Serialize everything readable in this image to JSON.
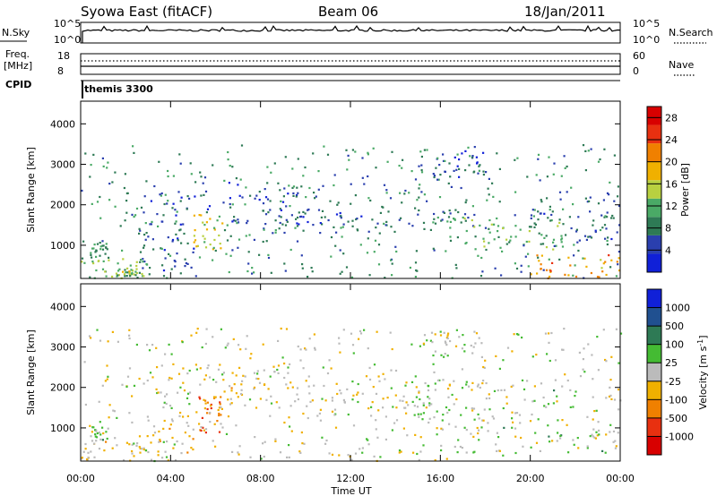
{
  "header": {
    "station": "Syowa East (fitACF)",
    "beam": "Beam 06",
    "date": "18/Jan/2011"
  },
  "noise_panel": {
    "left_label": "N.Sky",
    "left_ticks": [
      "10^5",
      "10^0"
    ],
    "right_ticks": [
      "10^5",
      "10^0"
    ],
    "right_label": "N.Search"
  },
  "freq_panel": {
    "left_label_1": "Freq.",
    "left_label_2": "[MHz]",
    "left_ticks": [
      "18",
      "8"
    ],
    "right_ticks": [
      "60",
      "0"
    ],
    "right_label": "Nave"
  },
  "cpid": {
    "label": "CPID",
    "value": "themis 3300"
  },
  "time_axis": {
    "label": "Time UT",
    "ticks": [
      "00:00",
      "04:00",
      "08:00",
      "12:00",
      "16:00",
      "20:00",
      "00:00"
    ]
  },
  "colors": {
    "power": [
      "#1020d8",
      "#2a3fae",
      "#2e7a55",
      "#4aaa66",
      "#b8d040",
      "#f0b000",
      "#f08000",
      "#e83010",
      "#d80000"
    ],
    "velocity": [
      "#1020d8",
      "#205090",
      "#2e7a55",
      "#44bb33",
      "#bbbbbb",
      "#f0b000",
      "#f08000",
      "#e83010",
      "#d80000"
    ]
  },
  "chart_data": [
    {
      "type": "heatmap",
      "panel": "power",
      "ylabel": "Slant Range [km]",
      "xlabel": "",
      "ylim": [
        180,
        4560
      ],
      "y_ticks": [
        1000,
        2000,
        3000,
        4000
      ],
      "x_ticks": [
        "00:00",
        "04:00",
        "08:00",
        "12:00",
        "16:00",
        "20:00",
        "00:00"
      ],
      "colorbar_label": "Power [dB]",
      "colorbar_ticks": [
        "4",
        "8",
        "12",
        "16",
        "20",
        "24",
        "28"
      ],
      "colorbar_range": [
        0,
        30
      ],
      "scatter_regions": [
        {
          "x": [
            0.0,
            3.0
          ],
          "y": [
            200,
            700
          ],
          "value": 12
        },
        {
          "x": [
            0.3,
            1.2
          ],
          "y": [
            700,
            1100
          ],
          "value": 10
        },
        {
          "x": [
            1.0,
            2.8
          ],
          "y": [
            200,
            400
          ],
          "value": 14
        },
        {
          "x": [
            2.5,
            5.0
          ],
          "y": [
            400,
            1400
          ],
          "value": 6
        },
        {
          "x": [
            5.0,
            6.3
          ],
          "y": [
            900,
            1800
          ],
          "value": 16
        },
        {
          "x": [
            3.0,
            10.0
          ],
          "y": [
            1500,
            2600
          ],
          "value": 5
        },
        {
          "x": [
            8.0,
            13.0
          ],
          "y": [
            1300,
            1900
          ],
          "value": 6
        },
        {
          "x": [
            13.0,
            17.5
          ],
          "y": [
            1400,
            1900
          ],
          "value": 8
        },
        {
          "x": [
            15.0,
            18.0
          ],
          "y": [
            2700,
            3400
          ],
          "value": 5
        },
        {
          "x": [
            17.0,
            21.5
          ],
          "y": [
            900,
            1700
          ],
          "value": 12
        },
        {
          "x": [
            19.5,
            24.0
          ],
          "y": [
            200,
            800
          ],
          "value": 20
        },
        {
          "x": [
            20.0,
            24.0
          ],
          "y": [
            1000,
            2400
          ],
          "value": 6
        },
        {
          "x": [
            0.0,
            24.0
          ],
          "y": [
            200,
            3500
          ],
          "value": 9
        }
      ]
    },
    {
      "type": "heatmap",
      "panel": "velocity",
      "ylabel": "Slant Range [km]",
      "xlabel": "Time UT",
      "ylim": [
        180,
        4560
      ],
      "y_ticks": [
        1000,
        2000,
        3000,
        4000
      ],
      "x_ticks": [
        "00:00",
        "04:00",
        "08:00",
        "12:00",
        "16:00",
        "20:00",
        "00:00"
      ],
      "colorbar_label": "Velocity [m s^-1]",
      "colorbar_ticks": [
        "1000",
        "500",
        "100",
        "25",
        "-25",
        "-100",
        "-500",
        "-1000"
      ],
      "colorbar_range": [
        -1000,
        1000
      ],
      "scatter_regions": [
        {
          "x": [
            0.0,
            4.0
          ],
          "y": [
            200,
            700
          ],
          "value": -100
        },
        {
          "x": [
            0.3,
            1.2
          ],
          "y": [
            700,
            1100
          ],
          "value": 100
        },
        {
          "x": [
            2.5,
            5.0
          ],
          "y": [
            400,
            1400
          ],
          "value": -150
        },
        {
          "x": [
            5.0,
            6.3
          ],
          "y": [
            900,
            1800
          ],
          "value": -500
        },
        {
          "x": [
            3.0,
            10.0
          ],
          "y": [
            1500,
            2600
          ],
          "value": -100
        },
        {
          "x": [
            10.0,
            17.0
          ],
          "y": [
            1300,
            1900
          ],
          "value": 0
        },
        {
          "x": [
            15.0,
            18.0
          ],
          "y": [
            2700,
            3400
          ],
          "value": 30
        },
        {
          "x": [
            15.0,
            23.5
          ],
          "y": [
            400,
            2200
          ],
          "value": 100
        },
        {
          "x": [
            0.0,
            24.0
          ],
          "y": [
            200,
            3500
          ],
          "value": -50
        }
      ]
    }
  ]
}
